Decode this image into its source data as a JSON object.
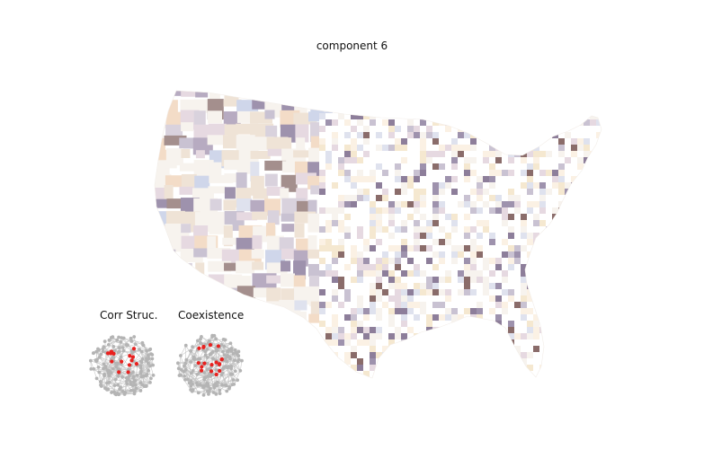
{
  "figure": {
    "title": "component 6"
  },
  "insets": [
    {
      "label": "Corr Struc."
    },
    {
      "label": "Coexistence"
    }
  ],
  "colors": {
    "palette": [
      "#f7f3ee",
      "#efe3d6",
      "#f3dcc7",
      "#e6d9e1",
      "#d9d2dd",
      "#c9c2d2",
      "#b7abc1",
      "#9e92ad",
      "#8d7e9a",
      "#a48f8d",
      "#8a6c6a",
      "#dfe2ee",
      "#cfd6ea",
      "#f5e8d0",
      "#fbf1e4",
      "#e9dfcf"
    ],
    "network_node": "#b4b4b4",
    "network_edge": "#c8c8c8",
    "highlight_node": "#e8211f"
  }
}
